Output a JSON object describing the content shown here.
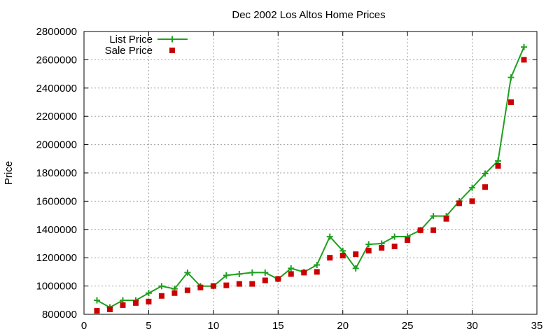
{
  "chart_data": {
    "type": "line",
    "title": "Dec 2002 Los Altos Home Prices",
    "xlabel": "",
    "ylabel": "Price",
    "xlim": [
      0,
      35
    ],
    "ylim": [
      800000,
      2800000
    ],
    "x_ticks": [
      0,
      5,
      10,
      15,
      20,
      25,
      30,
      35
    ],
    "y_ticks": [
      800000,
      1000000,
      1200000,
      1400000,
      1600000,
      1800000,
      2000000,
      2200000,
      2400000,
      2600000,
      2800000
    ],
    "grid": true,
    "legend_position": "top-left",
    "series": [
      {
        "name": "List Price",
        "style": "line+cross",
        "color": "#1ea01e",
        "x": [
          1,
          2,
          3,
          4,
          5,
          6,
          7,
          8,
          9,
          10,
          11,
          12,
          13,
          14,
          15,
          16,
          17,
          18,
          19,
          20,
          21,
          22,
          23,
          24,
          25,
          26,
          27,
          28,
          29,
          30,
          31,
          32,
          33,
          34
        ],
        "y": [
          899000,
          849000,
          899000,
          899000,
          950000,
          999000,
          980000,
          1095000,
          999000,
          999000,
          1075000,
          1085000,
          1095000,
          1095000,
          1049000,
          1125000,
          1099000,
          1149000,
          1349000,
          1249000,
          1125000,
          1295000,
          1300000,
          1349000,
          1350000,
          1395000,
          1495000,
          1495000,
          1600000,
          1695000,
          1795000,
          1885000,
          2475000,
          2690000
        ]
      },
      {
        "name": "Sale Price",
        "style": "square",
        "color": "#cc0000",
        "x": [
          1,
          2,
          3,
          4,
          5,
          6,
          7,
          8,
          9,
          10,
          11,
          12,
          13,
          14,
          15,
          16,
          17,
          18,
          19,
          20,
          21,
          22,
          23,
          24,
          25,
          26,
          27,
          28,
          29,
          30,
          31,
          32,
          33,
          34
        ],
        "y": [
          825000,
          835000,
          865000,
          880000,
          890000,
          930000,
          950000,
          970000,
          990000,
          1000000,
          1005000,
          1015000,
          1015000,
          1040000,
          1050000,
          1085000,
          1095000,
          1100000,
          1200000,
          1215000,
          1225000,
          1250000,
          1270000,
          1280000,
          1325000,
          1395000,
          1395000,
          1475000,
          1585000,
          1600000,
          1700000,
          1850000,
          2300000,
          2600000
        ]
      }
    ]
  }
}
